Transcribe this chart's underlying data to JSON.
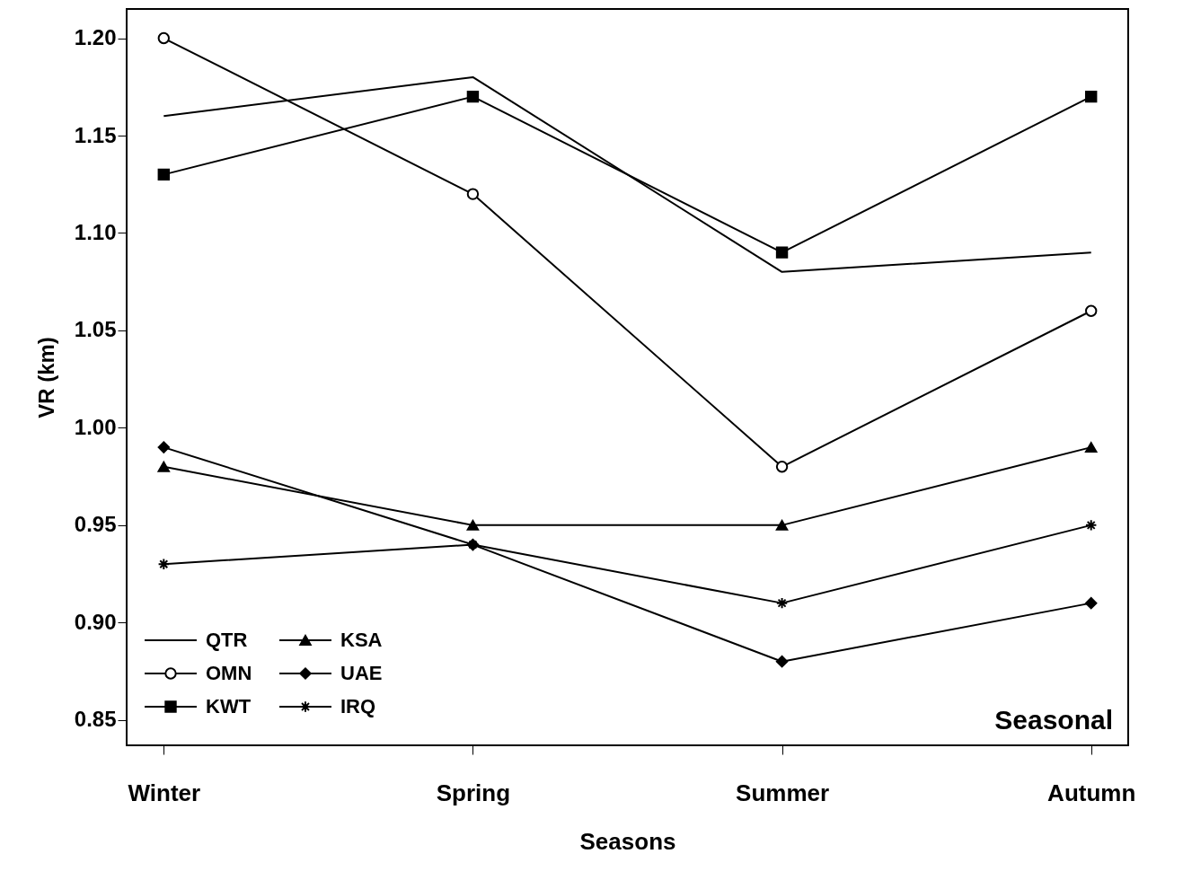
{
  "chart_data": {
    "type": "line",
    "xlabel": "Seasons",
    "ylabel": "VR (km)",
    "categories": [
      "Winter",
      "Spring",
      "Summer",
      "Autumn"
    ],
    "ylim": [
      0.837,
      1.215
    ],
    "yticks": [
      0.85,
      {
        "value": 0.9,
        "label": "0.90"
      },
      0.95,
      {
        "value": 1.0,
        "label": "1.00"
      },
      1.05,
      {
        "value": 1.1,
        "label": "1.10"
      },
      1.15,
      {
        "value": 1.2,
        "label": "1.20"
      }
    ],
    "grid": false,
    "legend": "bottom left",
    "line_style": "solid",
    "annotations": [
      "Seasonal"
    ],
    "series": [
      {
        "name": "QTR",
        "color": "#000000",
        "marker": "none",
        "values": [
          1.16,
          1.18,
          1.08,
          1.09
        ]
      },
      {
        "name": "OMN",
        "color": "#000000",
        "marker": "circle",
        "values": [
          1.2,
          1.12,
          0.98,
          1.06
        ]
      },
      {
        "name": "KWT",
        "color": "#000000",
        "marker": "square",
        "values": [
          1.13,
          1.17,
          1.09,
          1.17
        ]
      },
      {
        "name": "KSA",
        "color": "#000000",
        "marker": "triangle",
        "values": [
          0.98,
          0.95,
          0.95,
          0.99
        ]
      },
      {
        "name": "UAE",
        "color": "#000000",
        "marker": "diamond",
        "values": [
          0.99,
          0.94,
          0.88,
          0.91
        ]
      },
      {
        "name": "IRQ",
        "color": "#000000",
        "marker": "cross",
        "values": [
          0.93,
          0.94,
          0.91,
          0.95
        ]
      }
    ]
  }
}
